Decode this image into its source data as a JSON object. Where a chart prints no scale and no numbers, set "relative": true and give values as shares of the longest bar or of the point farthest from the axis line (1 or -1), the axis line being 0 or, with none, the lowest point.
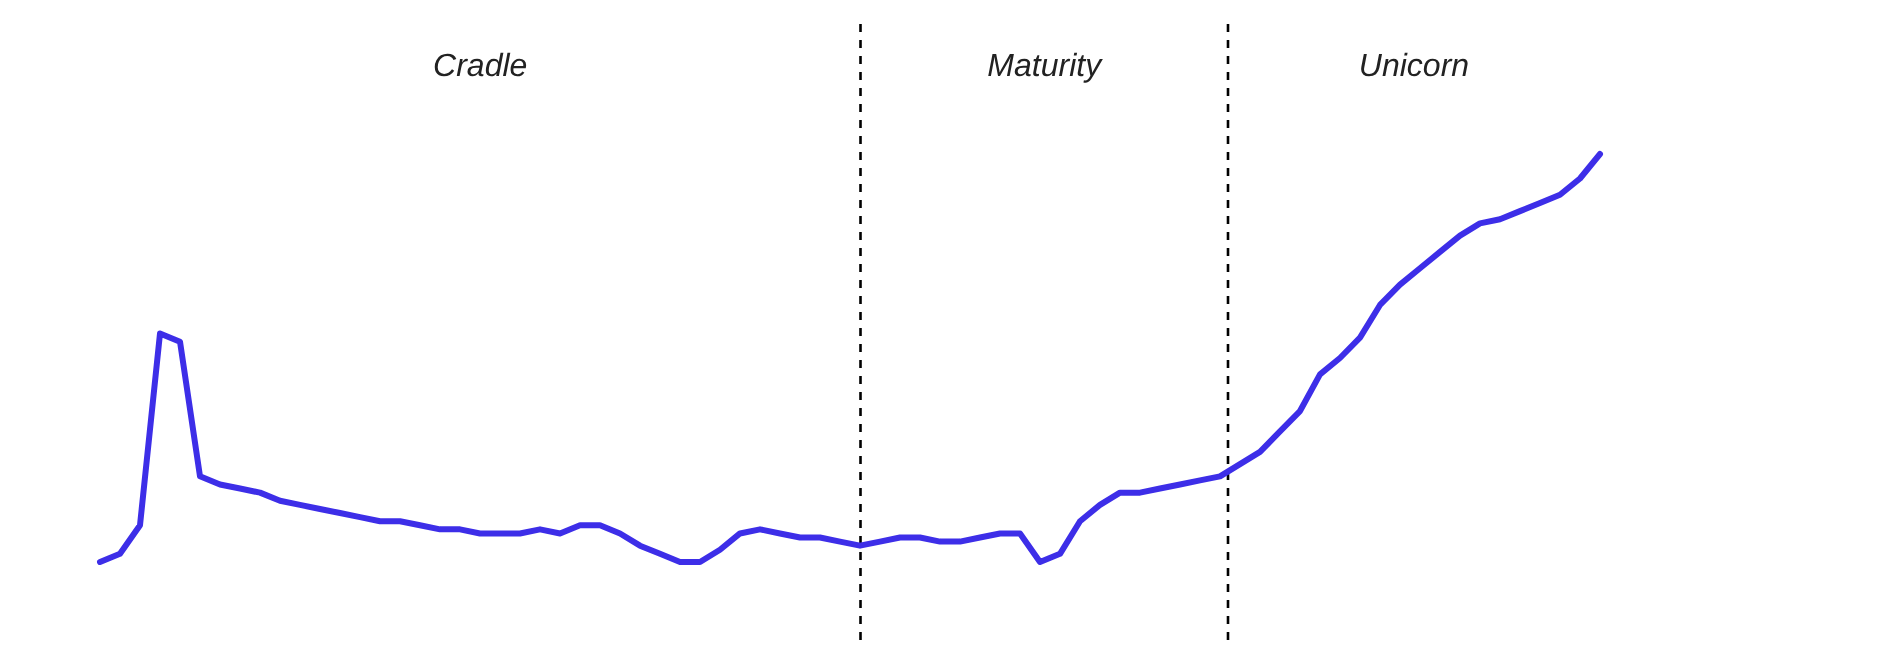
{
  "chart_data": {
    "type": "line",
    "relative": true,
    "categories": [
      null,
      null,
      null,
      null,
      null,
      null,
      null,
      null,
      null,
      null,
      null,
      null,
      null,
      null,
      null,
      null,
      null,
      null,
      null,
      null,
      null,
      null,
      null,
      null,
      null,
      null,
      null,
      null,
      null,
      null,
      null,
      null,
      null,
      null,
      null,
      null,
      null,
      null,
      null,
      null,
      null,
      null,
      null,
      null,
      null,
      null,
      null,
      null,
      null,
      null,
      null,
      null,
      null,
      null,
      null,
      null,
      null,
      null,
      null,
      null,
      null,
      null,
      null,
      null,
      null,
      null,
      null,
      null,
      null,
      null,
      null,
      null,
      null,
      null,
      null,
      null
    ],
    "series": [
      {
        "color": "#3d2ee8",
        "values": [
          0,
          0.02,
          0.09,
          0.56,
          0.54,
          0.21,
          0.19,
          0.18,
          0.17,
          0.15,
          0.14,
          0.13,
          0.12,
          0.11,
          0.1,
          0.1,
          0.09,
          0.08,
          0.08,
          0.07,
          0.07,
          0.07,
          0.08,
          0.07,
          0.09,
          0.09,
          0.07,
          0.04,
          0.02,
          0.0,
          0.0,
          0.03,
          0.07,
          0.08,
          0.07,
          0.06,
          0.06,
          0.05,
          0.04,
          0.05,
          0.06,
          0.06,
          0.05,
          0.05,
          0.06,
          0.07,
          0.07,
          0.0,
          0.02,
          0.1,
          0.14,
          0.17,
          0.17,
          0.18,
          0.19,
          0.2,
          0.21,
          0.24,
          0.27,
          0.32,
          0.37,
          0.46,
          0.5,
          0.55,
          0.63,
          0.68,
          0.72,
          0.76,
          0.8,
          0.83,
          0.84,
          0.86,
          0.88,
          0.9,
          0.94,
          1
        ]
      }
    ],
    "annotations": [
      "Cradle",
      "Maturity",
      "Unicorn"
    ]
  }
}
